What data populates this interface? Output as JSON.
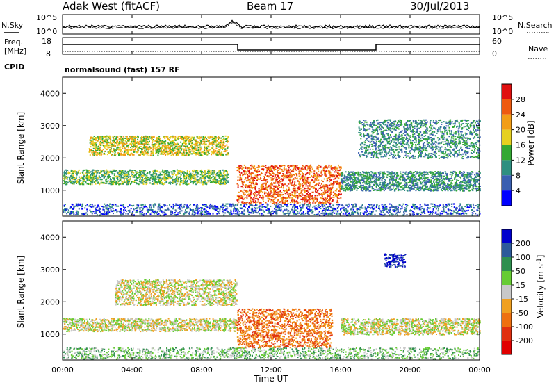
{
  "header": {
    "title": "Adak West (fitACF)",
    "beam": "Beam 17",
    "date": "30/Jul/2013"
  },
  "status_panels": {
    "nsky_label": "N.Sky",
    "nsearch_label": "N.Search",
    "noise_left_ticks": [
      "10^5",
      "10^0"
    ],
    "noise_right_ticks": [
      "10^5",
      "10^0"
    ],
    "freq_label_1": "Freq.",
    "freq_label_2": "[MHz]",
    "freq_ticks": [
      "18",
      "8"
    ],
    "nave_label": "Nave",
    "nave_ticks": [
      "60",
      "0"
    ],
    "cpid_label": "CPID",
    "cpid_text": "normalsound (fast) 157 RF"
  },
  "time_axis": {
    "label": "Time UT",
    "ticks": [
      "00:00",
      "04:00",
      "08:00",
      "12:00",
      "16:00",
      "20:00",
      "00:00"
    ]
  },
  "chart_data": [
    {
      "type": "heatmap",
      "title": "",
      "xlabel": "Time UT",
      "ylabel": "Slant Range [km]",
      "xlim": [
        0,
        24
      ],
      "ylim": [
        200,
        4500
      ],
      "yticks": [
        "1000",
        "2000",
        "3000",
        "4000"
      ],
      "colorbar": {
        "label": "Power [dB]",
        "ticks": [
          "4",
          "8",
          "12",
          "16",
          "20",
          "24",
          "28"
        ],
        "colors": [
          "#0000ff",
          "#3a5fb0",
          "#2f8f80",
          "#33a833",
          "#e6d020",
          "#f29d16",
          "#ee5a10",
          "#e01010"
        ]
      },
      "echo_regions_hours_km": [
        {
          "t0": 0.0,
          "t1": 24.0,
          "r0": 250,
          "r1": 600,
          "level": 1
        },
        {
          "t0": 0.0,
          "t1": 9.5,
          "r0": 1200,
          "r1": 1650,
          "level": 3
        },
        {
          "t0": 1.5,
          "t1": 9.5,
          "r0": 2100,
          "r1": 2700,
          "level": 4
        },
        {
          "t0": 10.0,
          "t1": 16.0,
          "r0": 600,
          "r1": 1800,
          "level": 6
        },
        {
          "t0": 16.0,
          "t1": 24.0,
          "r0": 1000,
          "r1": 1600,
          "level": 2
        },
        {
          "t0": 17.0,
          "t1": 24.0,
          "r0": 2000,
          "r1": 3200,
          "level": 2
        }
      ]
    },
    {
      "type": "heatmap",
      "title": "",
      "xlabel": "Time UT",
      "ylabel": "Slant Range [km]",
      "xlim": [
        0,
        24
      ],
      "ylim": [
        200,
        4500
      ],
      "yticks": [
        "1000",
        "2000",
        "3000",
        "4000"
      ],
      "colorbar": {
        "label": "Velocity [m s^-1]",
        "ticks": [
          "200",
          "100",
          "50",
          "15",
          "-15",
          "-50",
          "-100",
          "-200"
        ],
        "colors": [
          "#0000cc",
          "#2d5a9a",
          "#2f8f4f",
          "#66cc33",
          "#c8c8c8",
          "#f0a020",
          "#ee7010",
          "#e03010",
          "#e00000"
        ]
      },
      "echo_regions_hours_km": [
        {
          "t0": 0.0,
          "t1": 24.0,
          "r0": 250,
          "r1": 600,
          "level": 3
        },
        {
          "t0": 0.0,
          "t1": 10.0,
          "r0": 1100,
          "r1": 1500,
          "level": 4
        },
        {
          "t0": 3.0,
          "t1": 10.0,
          "r0": 1900,
          "r1": 2700,
          "level": 4
        },
        {
          "t0": 10.0,
          "t1": 15.5,
          "r0": 600,
          "r1": 1800,
          "level": 6
        },
        {
          "t0": 16.0,
          "t1": 24.0,
          "r0": 1000,
          "r1": 1500,
          "level": 4
        },
        {
          "t0": 18.5,
          "t1": 19.7,
          "r0": 3100,
          "r1": 3500,
          "level": 0
        }
      ]
    }
  ]
}
